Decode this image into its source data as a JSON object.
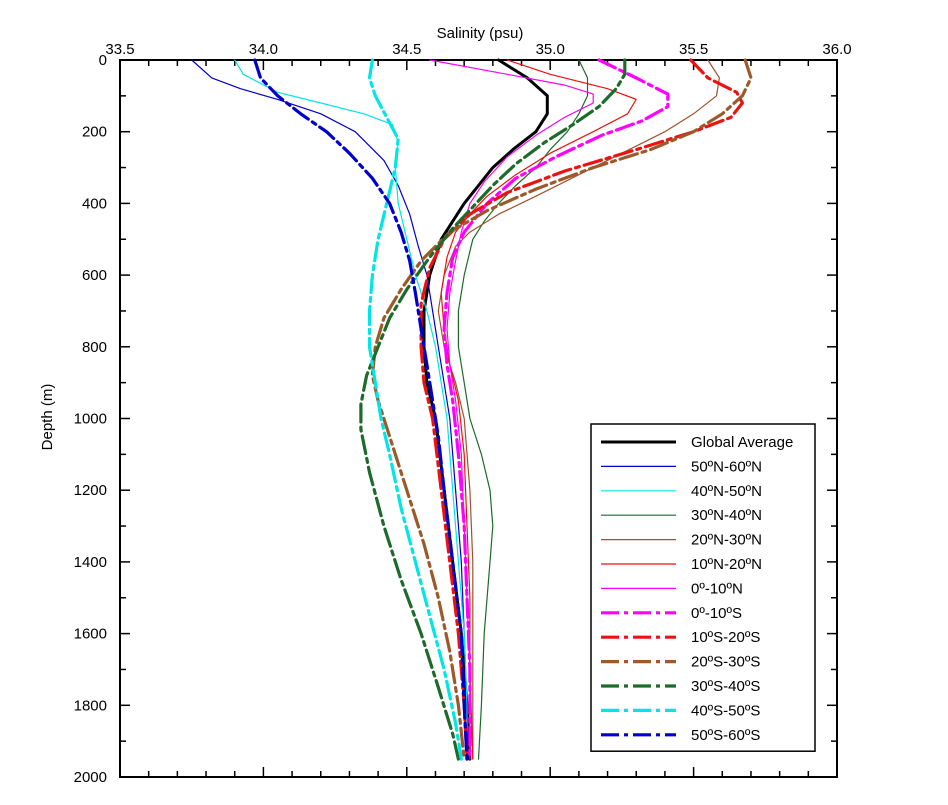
{
  "chart_data": {
    "type": "line",
    "xlabel": "Salinity (psu)",
    "ylabel": "Depth (m)",
    "x_axis_position": "top",
    "y_axis_inverted": true,
    "xlim": [
      33.5,
      36.0
    ],
    "ylim": [
      0,
      2000
    ],
    "x_ticks": [
      "33.5",
      "34.0",
      "34.5",
      "35.0",
      "35.5",
      "36.0"
    ],
    "y_ticks": [
      "0",
      "200",
      "400",
      "600",
      "800",
      "1000",
      "1200",
      "1400",
      "1600",
      "1800",
      "2000"
    ],
    "grid": false,
    "legend_position": "bottom-right",
    "series": [
      {
        "name": "Global Average",
        "color": "#000000",
        "style": "solid",
        "width": 3,
        "points": [
          [
            34.82,
            0
          ],
          [
            34.92,
            50
          ],
          [
            34.99,
            100
          ],
          [
            34.99,
            150
          ],
          [
            34.95,
            200
          ],
          [
            34.87,
            250
          ],
          [
            34.8,
            300
          ],
          [
            34.75,
            350
          ],
          [
            34.7,
            400
          ],
          [
            34.66,
            450
          ],
          [
            34.62,
            500
          ],
          [
            34.6,
            550
          ],
          [
            34.58,
            600
          ],
          [
            34.57,
            650
          ],
          [
            34.56,
            700
          ],
          [
            34.56,
            800
          ],
          [
            34.57,
            900
          ],
          [
            34.6,
            1000
          ],
          [
            34.63,
            1200
          ],
          [
            34.66,
            1400
          ],
          [
            34.69,
            1600
          ],
          [
            34.71,
            1800
          ],
          [
            34.72,
            1950
          ]
        ]
      },
      {
        "name": "50ºN-60ºN",
        "color": "#0000cc",
        "style": "solid",
        "width": 1.2,
        "points": [
          [
            33.75,
            0
          ],
          [
            33.82,
            50
          ],
          [
            33.92,
            80
          ],
          [
            34.05,
            110
          ],
          [
            34.2,
            150
          ],
          [
            34.32,
            200
          ],
          [
            34.42,
            280
          ],
          [
            34.47,
            350
          ],
          [
            34.51,
            430
          ],
          [
            34.54,
            520
          ],
          [
            34.57,
            600
          ],
          [
            34.59,
            700
          ],
          [
            34.61,
            800
          ],
          [
            34.63,
            900
          ],
          [
            34.65,
            1000
          ],
          [
            34.67,
            1200
          ],
          [
            34.69,
            1400
          ],
          [
            34.7,
            1600
          ],
          [
            34.71,
            1800
          ],
          [
            34.71,
            1950
          ]
        ]
      },
      {
        "name": "40ºN-50ºN",
        "color": "#00e5e5",
        "style": "solid",
        "width": 1.2,
        "points": [
          [
            33.9,
            0
          ],
          [
            33.93,
            40
          ],
          [
            34.05,
            90
          ],
          [
            34.2,
            120
          ],
          [
            34.35,
            150
          ],
          [
            34.45,
            180
          ],
          [
            34.47,
            230
          ],
          [
            34.46,
            300
          ],
          [
            34.47,
            400
          ],
          [
            34.5,
            500
          ],
          [
            34.53,
            600
          ],
          [
            34.57,
            700
          ],
          [
            34.6,
            800
          ],
          [
            34.62,
            900
          ],
          [
            34.64,
            1000
          ],
          [
            34.66,
            1200
          ],
          [
            34.68,
            1400
          ],
          [
            34.7,
            1600
          ],
          [
            34.71,
            1800
          ],
          [
            34.71,
            1950
          ]
        ]
      },
      {
        "name": "30ºN-40ºN",
        "color": "#1d6b2a",
        "style": "solid",
        "width": 1.2,
        "points": [
          [
            35.1,
            0
          ],
          [
            35.13,
            50
          ],
          [
            35.13,
            100
          ],
          [
            35.1,
            150
          ],
          [
            35.06,
            200
          ],
          [
            35.0,
            250
          ],
          [
            34.95,
            300
          ],
          [
            34.88,
            350
          ],
          [
            34.82,
            400
          ],
          [
            34.77,
            450
          ],
          [
            34.73,
            500
          ],
          [
            34.7,
            600
          ],
          [
            34.68,
            700
          ],
          [
            34.68,
            800
          ],
          [
            34.7,
            900
          ],
          [
            34.72,
            1000
          ],
          [
            34.76,
            1100
          ],
          [
            34.79,
            1200
          ],
          [
            34.8,
            1300
          ],
          [
            34.79,
            1400
          ],
          [
            34.77,
            1600
          ],
          [
            34.76,
            1800
          ],
          [
            34.75,
            1950
          ]
        ]
      },
      {
        "name": "20ºN-30ºN",
        "color": "#a0522d",
        "style": "solid",
        "width": 1.2,
        "points": [
          [
            35.55,
            0
          ],
          [
            35.59,
            50
          ],
          [
            35.58,
            100
          ],
          [
            35.5,
            150
          ],
          [
            35.4,
            200
          ],
          [
            35.25,
            260
          ],
          [
            35.1,
            320
          ],
          [
            34.95,
            380
          ],
          [
            34.82,
            430
          ],
          [
            34.72,
            480
          ],
          [
            34.67,
            520
          ],
          [
            34.63,
            600
          ],
          [
            34.61,
            700
          ],
          [
            34.63,
            800
          ],
          [
            34.67,
            900
          ],
          [
            34.7,
            1000
          ],
          [
            34.72,
            1200
          ],
          [
            34.73,
            1400
          ],
          [
            34.73,
            1600
          ],
          [
            34.73,
            1800
          ],
          [
            34.73,
            1950
          ]
        ]
      },
      {
        "name": "10ºN-20ºN",
        "color": "#ee1111",
        "style": "solid",
        "width": 1.2,
        "points": [
          [
            34.85,
            0
          ],
          [
            35.0,
            40
          ],
          [
            35.2,
            80
          ],
          [
            35.3,
            110
          ],
          [
            35.27,
            150
          ],
          [
            35.15,
            200
          ],
          [
            35.0,
            260
          ],
          [
            34.88,
            320
          ],
          [
            34.78,
            380
          ],
          [
            34.72,
            430
          ],
          [
            34.67,
            480
          ],
          [
            34.64,
            550
          ],
          [
            34.62,
            650
          ],
          [
            34.63,
            750
          ],
          [
            34.65,
            850
          ],
          [
            34.68,
            950
          ],
          [
            34.7,
            1100
          ],
          [
            34.71,
            1300
          ],
          [
            34.72,
            1500
          ],
          [
            34.72,
            1700
          ],
          [
            34.73,
            1950
          ]
        ]
      },
      {
        "name": "0º-10ºN",
        "color": "#ff00ff",
        "style": "solid",
        "width": 1.2,
        "points": [
          [
            34.58,
            0
          ],
          [
            34.85,
            40
          ],
          [
            35.05,
            70
          ],
          [
            35.15,
            95
          ],
          [
            35.15,
            120
          ],
          [
            35.05,
            160
          ],
          [
            34.95,
            210
          ],
          [
            34.85,
            270
          ],
          [
            34.77,
            340
          ],
          [
            34.72,
            400
          ],
          [
            34.69,
            480
          ],
          [
            34.67,
            560
          ],
          [
            34.65,
            650
          ],
          [
            34.64,
            750
          ],
          [
            34.65,
            850
          ],
          [
            34.67,
            950
          ],
          [
            34.69,
            1100
          ],
          [
            34.7,
            1300
          ],
          [
            34.71,
            1500
          ],
          [
            34.72,
            1700
          ],
          [
            34.72,
            1950
          ]
        ]
      },
      {
        "name": "0º-10ºS",
        "color": "#ff00ff",
        "style": "dashed",
        "width": 3.2,
        "points": [
          [
            35.17,
            0
          ],
          [
            35.3,
            50
          ],
          [
            35.41,
            95
          ],
          [
            35.41,
            130
          ],
          [
            35.32,
            170
          ],
          [
            35.18,
            210
          ],
          [
            35.02,
            270
          ],
          [
            34.88,
            330
          ],
          [
            34.78,
            400
          ],
          [
            34.7,
            480
          ],
          [
            34.66,
            550
          ],
          [
            34.64,
            650
          ],
          [
            34.63,
            750
          ],
          [
            34.64,
            850
          ],
          [
            34.66,
            950
          ],
          [
            34.68,
            1100
          ],
          [
            34.7,
            1300
          ],
          [
            34.71,
            1500
          ],
          [
            34.72,
            1700
          ],
          [
            34.72,
            1950
          ]
        ]
      },
      {
        "name": "10ºS-20ºS",
        "color": "#ee1111",
        "style": "dashed",
        "width": 3.2,
        "points": [
          [
            35.49,
            0
          ],
          [
            35.55,
            50
          ],
          [
            35.65,
            90
          ],
          [
            35.67,
            120
          ],
          [
            35.63,
            160
          ],
          [
            35.5,
            200
          ],
          [
            35.3,
            250
          ],
          [
            35.05,
            310
          ],
          [
            34.85,
            370
          ],
          [
            34.72,
            430
          ],
          [
            34.63,
            500
          ],
          [
            34.58,
            580
          ],
          [
            34.55,
            680
          ],
          [
            34.55,
            800
          ],
          [
            34.56,
            900
          ],
          [
            34.59,
            1000
          ],
          [
            34.62,
            1200
          ],
          [
            34.65,
            1400
          ],
          [
            34.68,
            1600
          ],
          [
            34.7,
            1800
          ],
          [
            34.71,
            1950
          ]
        ]
      },
      {
        "name": "20ºS-30ºS",
        "color": "#9c5a2a",
        "style": "dashed",
        "width": 3.2,
        "points": [
          [
            35.68,
            0
          ],
          [
            35.7,
            50
          ],
          [
            35.67,
            100
          ],
          [
            35.6,
            150
          ],
          [
            35.5,
            200
          ],
          [
            35.35,
            250
          ],
          [
            35.15,
            300
          ],
          [
            34.95,
            360
          ],
          [
            34.78,
            420
          ],
          [
            34.65,
            480
          ],
          [
            34.55,
            560
          ],
          [
            34.48,
            640
          ],
          [
            34.42,
            720
          ],
          [
            34.39,
            800
          ],
          [
            34.38,
            880
          ],
          [
            34.4,
            950
          ],
          [
            34.44,
            1050
          ],
          [
            34.5,
            1200
          ],
          [
            34.56,
            1350
          ],
          [
            34.61,
            1500
          ],
          [
            34.65,
            1650
          ],
          [
            34.68,
            1800
          ],
          [
            34.7,
            1950
          ]
        ]
      },
      {
        "name": "30ºS-40ºS",
        "color": "#1d6b2a",
        "style": "dashed",
        "width": 3.2,
        "points": [
          [
            35.26,
            0
          ],
          [
            35.26,
            40
          ],
          [
            35.23,
            80
          ],
          [
            35.17,
            130
          ],
          [
            35.08,
            180
          ],
          [
            34.98,
            230
          ],
          [
            34.88,
            290
          ],
          [
            34.8,
            350
          ],
          [
            34.73,
            410
          ],
          [
            34.66,
            470
          ],
          [
            34.58,
            550
          ],
          [
            34.5,
            640
          ],
          [
            34.44,
            720
          ],
          [
            34.4,
            800
          ],
          [
            34.36,
            880
          ],
          [
            34.34,
            960
          ],
          [
            34.34,
            1030
          ],
          [
            34.37,
            1150
          ],
          [
            34.42,
            1300
          ],
          [
            34.48,
            1450
          ],
          [
            34.55,
            1600
          ],
          [
            34.61,
            1750
          ],
          [
            34.66,
            1880
          ],
          [
            34.68,
            1950
          ]
        ]
      },
      {
        "name": "40ºS-50ºS",
        "color": "#00e5e5",
        "style": "dashed",
        "width": 3.2,
        "points": [
          [
            34.38,
            0
          ],
          [
            34.37,
            50
          ],
          [
            34.39,
            100
          ],
          [
            34.43,
            160
          ],
          [
            34.47,
            220
          ],
          [
            34.46,
            300
          ],
          [
            34.43,
            400
          ],
          [
            34.4,
            500
          ],
          [
            34.38,
            600
          ],
          [
            34.37,
            700
          ],
          [
            34.37,
            800
          ],
          [
            34.39,
            900
          ],
          [
            34.41,
            1000
          ],
          [
            34.44,
            1100
          ],
          [
            34.48,
            1250
          ],
          [
            34.53,
            1400
          ],
          [
            34.58,
            1550
          ],
          [
            34.63,
            1700
          ],
          [
            34.67,
            1850
          ],
          [
            34.69,
            1950
          ]
        ]
      },
      {
        "name": "50ºS-60ºS",
        "color": "#0000cc",
        "style": "dashed",
        "width": 3.2,
        "points": [
          [
            33.97,
            0
          ],
          [
            33.99,
            50
          ],
          [
            34.05,
            100
          ],
          [
            34.13,
            150
          ],
          [
            34.22,
            200
          ],
          [
            34.3,
            260
          ],
          [
            34.38,
            330
          ],
          [
            34.44,
            400
          ],
          [
            34.48,
            480
          ],
          [
            34.51,
            560
          ],
          [
            34.53,
            650
          ],
          [
            34.55,
            750
          ],
          [
            34.57,
            850
          ],
          [
            34.59,
            950
          ],
          [
            34.61,
            1050
          ],
          [
            34.63,
            1200
          ],
          [
            34.66,
            1400
          ],
          [
            34.69,
            1600
          ],
          [
            34.7,
            1800
          ],
          [
            34.71,
            1950
          ]
        ]
      }
    ]
  }
}
